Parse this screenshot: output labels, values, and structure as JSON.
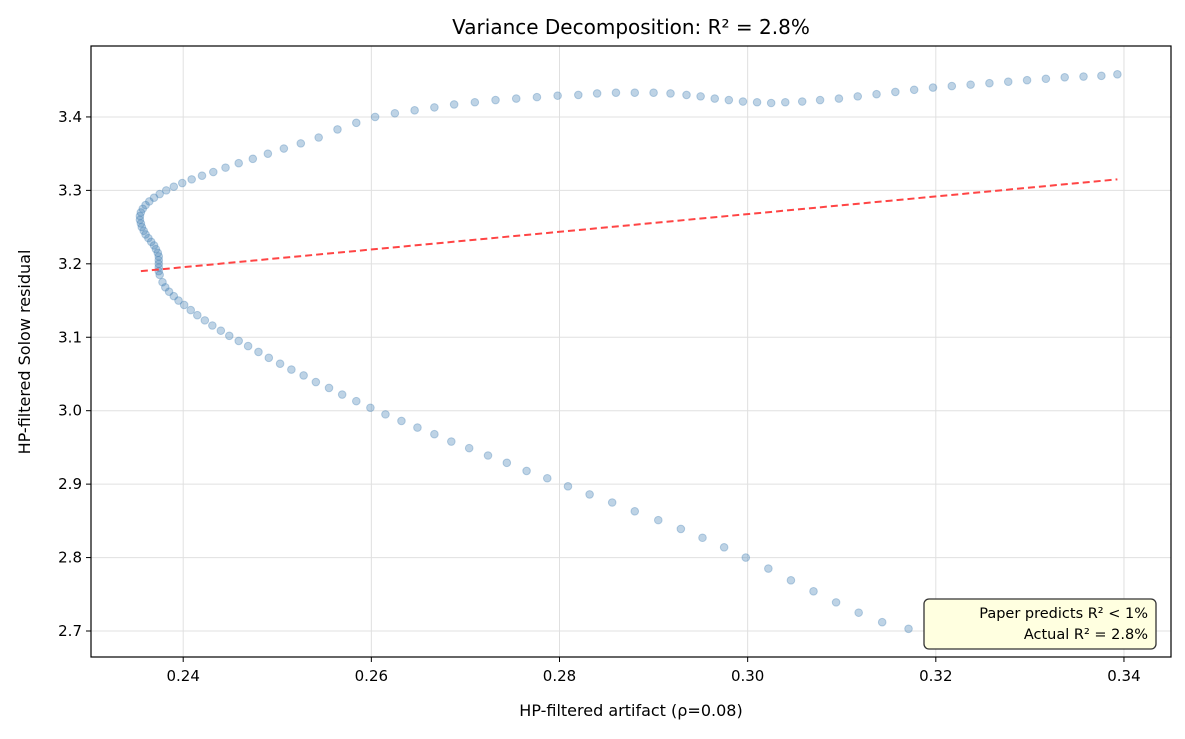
{
  "chart_data": {
    "type": "scatter",
    "title": "Variance Decomposition: R² = 2.8%",
    "xlabel": "HP-filtered artifact (ρ=0.08)",
    "ylabel": "HP-filtered Solow residual",
    "xlim": [
      0.2302,
      0.345
    ],
    "ylim": [
      2.6646,
      3.4966
    ],
    "xticks": [
      0.24,
      0.26,
      0.28,
      0.3,
      0.32,
      0.34
    ],
    "xtick_labels": [
      "0.24",
      "0.26",
      "0.28",
      "0.30",
      "0.32",
      "0.34"
    ],
    "yticks": [
      2.7,
      2.8,
      2.9,
      3.0,
      3.1,
      3.2,
      3.3,
      3.4
    ],
    "ytick_labels": [
      "2.7",
      "2.8",
      "2.9",
      "3.0",
      "3.1",
      "3.2",
      "3.3",
      "3.4"
    ],
    "grid": true,
    "colors": {
      "points": "#4682b4",
      "fit_line": "#ff4444",
      "annotation_bg": "#ffffe0"
    },
    "points": [
      [
        0.3171,
        2.703
      ],
      [
        0.3143,
        2.712
      ],
      [
        0.3118,
        2.725
      ],
      [
        0.3094,
        2.739
      ],
      [
        0.307,
        2.754
      ],
      [
        0.3046,
        2.769
      ],
      [
        0.3022,
        2.785
      ],
      [
        0.2998,
        2.8
      ],
      [
        0.2975,
        2.814
      ],
      [
        0.2952,
        2.827
      ],
      [
        0.2929,
        2.839
      ],
      [
        0.2905,
        2.851
      ],
      [
        0.288,
        2.863
      ],
      [
        0.2856,
        2.875
      ],
      [
        0.2832,
        2.886
      ],
      [
        0.2809,
        2.897
      ],
      [
        0.2787,
        2.908
      ],
      [
        0.2765,
        2.918
      ],
      [
        0.2744,
        2.929
      ],
      [
        0.2724,
        2.939
      ],
      [
        0.2704,
        2.949
      ],
      [
        0.2685,
        2.958
      ],
      [
        0.2667,
        2.968
      ],
      [
        0.2649,
        2.977
      ],
      [
        0.2632,
        2.986
      ],
      [
        0.2615,
        2.995
      ],
      [
        0.2599,
        3.004
      ],
      [
        0.2584,
        3.013
      ],
      [
        0.2569,
        3.022
      ],
      [
        0.2555,
        3.031
      ],
      [
        0.2541,
        3.039
      ],
      [
        0.2528,
        3.048
      ],
      [
        0.2515,
        3.056
      ],
      [
        0.2503,
        3.064
      ],
      [
        0.2491,
        3.072
      ],
      [
        0.248,
        3.08
      ],
      [
        0.2469,
        3.088
      ],
      [
        0.2459,
        3.095
      ],
      [
        0.2449,
        3.102
      ],
      [
        0.244,
        3.109
      ],
      [
        0.2431,
        3.116
      ],
      [
        0.2423,
        3.123
      ],
      [
        0.2415,
        3.13
      ],
      [
        0.2408,
        3.137
      ],
      [
        0.2401,
        3.144
      ],
      [
        0.2395,
        3.15
      ],
      [
        0.239,
        3.156
      ],
      [
        0.2385,
        3.162
      ],
      [
        0.2381,
        3.168
      ],
      [
        0.2378,
        3.175
      ],
      [
        0.2375,
        3.185
      ],
      [
        0.2374,
        3.19
      ],
      [
        0.2374,
        3.195
      ],
      [
        0.2374,
        3.2
      ],
      [
        0.2374,
        3.205
      ],
      [
        0.2374,
        3.21
      ],
      [
        0.2373,
        3.215
      ],
      [
        0.2371,
        3.22
      ],
      [
        0.2369,
        3.225
      ],
      [
        0.2366,
        3.23
      ],
      [
        0.2363,
        3.235
      ],
      [
        0.236,
        3.24
      ],
      [
        0.2358,
        3.245
      ],
      [
        0.2356,
        3.25
      ],
      [
        0.2355,
        3.255
      ],
      [
        0.2354,
        3.26
      ],
      [
        0.2354,
        3.265
      ],
      [
        0.2355,
        3.27
      ],
      [
        0.2357,
        3.275
      ],
      [
        0.236,
        3.28
      ],
      [
        0.2364,
        3.285
      ],
      [
        0.2369,
        3.29
      ],
      [
        0.2375,
        3.295
      ],
      [
        0.2382,
        3.3
      ],
      [
        0.239,
        3.305
      ],
      [
        0.2399,
        3.31
      ],
      [
        0.2409,
        3.315
      ],
      [
        0.242,
        3.32
      ],
      [
        0.2432,
        3.325
      ],
      [
        0.2445,
        3.331
      ],
      [
        0.2459,
        3.337
      ],
      [
        0.2474,
        3.343
      ],
      [
        0.249,
        3.35
      ],
      [
        0.2507,
        3.357
      ],
      [
        0.2525,
        3.364
      ],
      [
        0.2544,
        3.372
      ],
      [
        0.2564,
        3.383
      ],
      [
        0.2584,
        3.392
      ],
      [
        0.2604,
        3.4
      ],
      [
        0.2625,
        3.405
      ],
      [
        0.2646,
        3.409
      ],
      [
        0.2667,
        3.413
      ],
      [
        0.2688,
        3.417
      ],
      [
        0.271,
        3.42
      ],
      [
        0.2732,
        3.423
      ],
      [
        0.2754,
        3.425
      ],
      [
        0.2776,
        3.427
      ],
      [
        0.2798,
        3.429
      ],
      [
        0.282,
        3.43
      ],
      [
        0.284,
        3.432
      ],
      [
        0.286,
        3.433
      ],
      [
        0.288,
        3.433
      ],
      [
        0.29,
        3.433
      ],
      [
        0.2918,
        3.432
      ],
      [
        0.2935,
        3.43
      ],
      [
        0.295,
        3.428
      ],
      [
        0.2965,
        3.425
      ],
      [
        0.298,
        3.423
      ],
      [
        0.2995,
        3.421
      ],
      [
        0.301,
        3.42
      ],
      [
        0.3025,
        3.419
      ],
      [
        0.304,
        3.42
      ],
      [
        0.3058,
        3.421
      ],
      [
        0.3077,
        3.423
      ],
      [
        0.3097,
        3.425
      ],
      [
        0.3117,
        3.428
      ],
      [
        0.3137,
        3.431
      ],
      [
        0.3157,
        3.434
      ],
      [
        0.3177,
        3.437
      ],
      [
        0.3197,
        3.44
      ],
      [
        0.3217,
        3.442
      ],
      [
        0.3237,
        3.444
      ],
      [
        0.3257,
        3.446
      ],
      [
        0.3277,
        3.448
      ],
      [
        0.3297,
        3.45
      ],
      [
        0.3317,
        3.452
      ],
      [
        0.3337,
        3.454
      ],
      [
        0.3357,
        3.455
      ],
      [
        0.3376,
        3.456
      ],
      [
        0.3393,
        3.458
      ]
    ],
    "fit_line": {
      "x": [
        0.2355,
        0.3393
      ],
      "y": [
        3.19,
        3.315
      ],
      "style": "dashed"
    },
    "annotation": {
      "line1": "Paper predicts R² < 1%",
      "line2": "Actual R² = 2.8%",
      "placement": "bottom-right"
    }
  }
}
